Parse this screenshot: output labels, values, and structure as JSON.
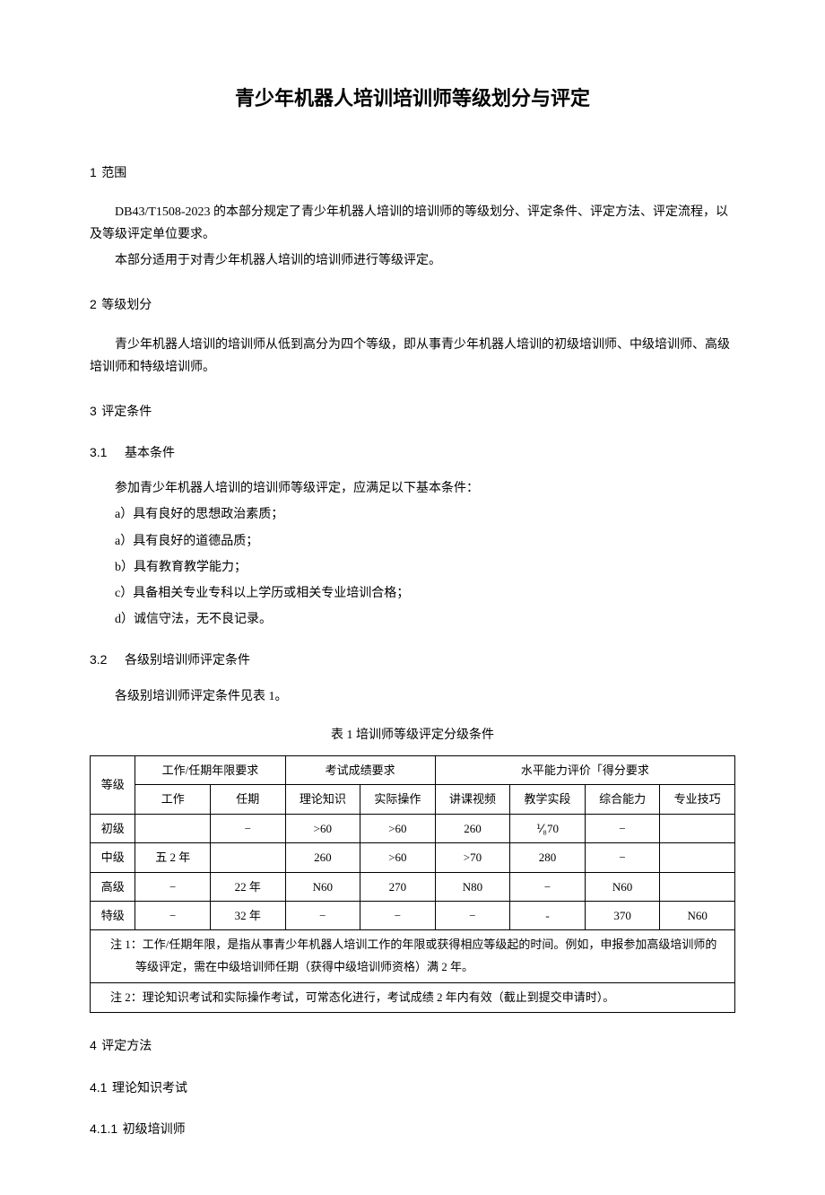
{
  "title": "青少年机器人培训培训师等级划分与评定",
  "s1": {
    "num": "1",
    "heading": "范围",
    "p1": "DB43/T1508-2023 的本部分规定了青少年机器人培训的培训师的等级划分、评定条件、评定方法、评定流程，以及等级评定单位要求。",
    "p2": "本部分适用于对青少年机器人培训的培训师进行等级评定。"
  },
  "s2": {
    "num": "2",
    "heading": "等级划分",
    "p1": "青少年机器人培训的培训师从低到高分为四个等级，即从事青少年机器人培训的初级培训师、中级培训师、高级培训师和特级培训师。"
  },
  "s3": {
    "num": "3",
    "heading": "评定条件",
    "s31": {
      "num": "3.1",
      "heading": "基本条件",
      "intro": "参加青少年机器人培训的培训师等级评定，应满足以下基本条件：",
      "items": [
        "a）具有良好的思想政治素质；",
        "a）具有良好的道德品质；",
        "b）具有教育教学能力；",
        "c）具备相关专业专科以上学历或相关专业培训合格；",
        "d）诚信守法，无不良记录。"
      ]
    },
    "s32": {
      "num": "3.2",
      "heading": "各级别培训师评定条件",
      "p1": "各级别培训师评定条件见表 1。"
    }
  },
  "table1": {
    "caption": "表 1 培训师等级评定分级条件",
    "header_groups": {
      "level": "等级",
      "g1": "工作/任期年限要求",
      "g2": "考试成绩要求",
      "g3": "水平能力评价「得分要求"
    },
    "header_cols": [
      "工作",
      "任期",
      "理论知识",
      "实际操作",
      "讲课视频",
      "教学实段",
      "综合能力",
      "专业技巧"
    ],
    "rows": [
      {
        "level": "初级",
        "c": [
          "",
          "−",
          ">60",
          ">60",
          "260",
          "⅟₈70",
          "−",
          ""
        ]
      },
      {
        "level": "中级",
        "c": [
          "五 2 年",
          "",
          "260",
          ">60",
          ">70",
          "280",
          "−",
          ""
        ]
      },
      {
        "level": "高级",
        "c": [
          "−",
          "22 年",
          "N60",
          "270",
          "N80",
          "−",
          "N60",
          ""
        ]
      },
      {
        "level": "特级",
        "c": [
          "−",
          "32 年",
          "−",
          "−",
          "−",
          "-",
          "370",
          "N60"
        ]
      }
    ],
    "note1": "注 1：工作/任期年限，是指从事青少年机器人培训工作的年限或获得相应等级起的时间。例如，申报参加高级培训师的等级评定，需在中级培训师任期（获得中级培训师资格）满 2 年。",
    "note2": "注 2：理论知识考试和实际操作考试，可常态化进行，考试成绩 2 年内有效（截止到提交申请时）。"
  },
  "s4": {
    "num": "4",
    "heading": "评定方法",
    "s41": {
      "num": "4.1",
      "heading": "理论知识考试"
    },
    "s411": {
      "num": "4.1.1",
      "heading": "初级培训师"
    }
  }
}
